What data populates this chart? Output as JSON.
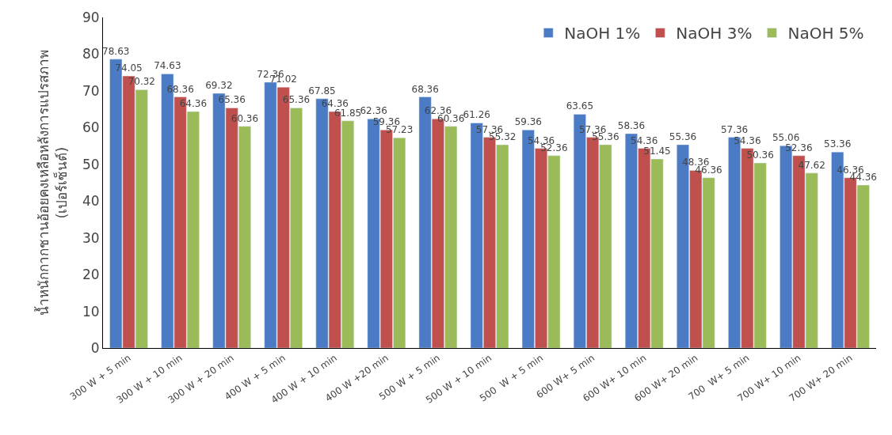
{
  "chart_data": {
    "type": "bar",
    "ylabel": "น้ำหนักกากชานอ้อยคงเหลือหลังการแปรสภาพ\n(เปอร์เซ็นต์)",
    "categories": [
      "300 W + 5 min",
      "300 W + 10 min",
      "300 W + 20 min",
      "400 W + 5 min",
      "400 W + 10 min",
      "400 W +20 min",
      "500 W + 5 min",
      "500 W + 10 min",
      "500  W + 5 min",
      "600 W+ 5 min",
      "600 W+ 10 min",
      "600 W+ 20 min",
      "700  W+ 5 min",
      "700 W+ 10 min",
      "700 W+ 20 min"
    ],
    "series": [
      {
        "name": "NaOH 1%",
        "color": "#4a7bc4",
        "values": [
          78.63,
          74.63,
          69.32,
          72.36,
          67.85,
          62.36,
          68.36,
          61.26,
          59.36,
          63.65,
          58.36,
          55.36,
          57.36,
          55.06,
          53.36
        ]
      },
      {
        "name": "NaOH 3%",
        "color": "#c0504d",
        "values": [
          74.05,
          68.36,
          65.36,
          71.02,
          64.36,
          59.36,
          62.36,
          57.36,
          54.36,
          57.36,
          54.36,
          48.36,
          54.36,
          52.36,
          46.36
        ]
      },
      {
        "name": "NaOH 5%",
        "color": "#9bbb59",
        "values": [
          70.32,
          64.36,
          60.36,
          65.36,
          61.85,
          57.23,
          60.36,
          55.32,
          52.36,
          55.36,
          51.45,
          46.36,
          50.36,
          47.62,
          44.36
        ]
      }
    ],
    "ylim": [
      0,
      90
    ],
    "yticks": [
      0,
      10,
      20,
      30,
      40,
      50,
      60,
      70,
      80,
      90
    ],
    "legend": "top right",
    "data_labels": true
  }
}
